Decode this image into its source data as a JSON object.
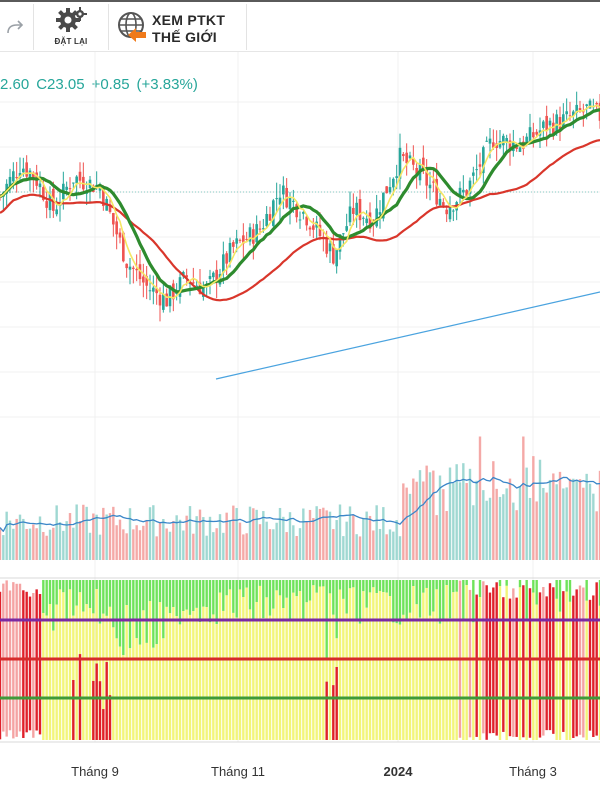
{
  "toolbar": {
    "reset_label": "ĐẶT LẠI",
    "ptkt_line1": "XEM PTKT",
    "ptkt_line2": "THẾ GIỚI"
  },
  "legend": {
    "low_partial": "2.60",
    "close": "C23.05",
    "change": "+0.85",
    "change_pct": "(+3.83%)"
  },
  "colors": {
    "up": "#26a69a",
    "down": "#ef5350",
    "ma_fast": "#f5e663",
    "ma_mid": "#2e8b2e",
    "ma_slow": "#d9362b",
    "trendline": "#4aa3df",
    "volume_ma": "#3a86c8",
    "ind_green": "#6fe35a",
    "ind_yellow": "#f2f57a",
    "ind_red": "#e0202a",
    "ind_pink": "#f4a3a3",
    "line_purple": "#7a2aa3",
    "line_red": "#d62b2b",
    "line_green": "#3f9a3a"
  },
  "chart_data": {
    "type": "candlestick",
    "title": "",
    "legend_text": "2.60 C23.05 +0.85 (+3.83%)",
    "x_tick_labels": [
      "Tháng 9",
      "Tháng 11",
      "2024",
      "Tháng 3"
    ],
    "y_axis_labels_visible": false,
    "panes": [
      {
        "name": "price",
        "series": [
          "candles",
          "MA fast (yellow)",
          "MA mid (green)",
          "MA slow (red)",
          "trendline"
        ]
      },
      {
        "name": "volume",
        "series": [
          "volume bars",
          "volume MA (blue)"
        ]
      },
      {
        "name": "oscillator",
        "series": [
          "histogram green/yellow/red"
        ],
        "horizontal_lines": [
          "purple",
          "red",
          "green"
        ]
      }
    ],
    "price_path_relative": [
      [
        0,
        0.7
      ],
      [
        6,
        0.8
      ],
      [
        10,
        0.77
      ],
      [
        16,
        0.66
      ],
      [
        22,
        0.76
      ],
      [
        30,
        0.73
      ],
      [
        38,
        0.5
      ],
      [
        44,
        0.42
      ],
      [
        50,
        0.38
      ],
      [
        56,
        0.45
      ],
      [
        62,
        0.41
      ],
      [
        70,
        0.54
      ],
      [
        78,
        0.6
      ],
      [
        84,
        0.72
      ],
      [
        92,
        0.64
      ],
      [
        100,
        0.52
      ],
      [
        106,
        0.66
      ],
      [
        112,
        0.63
      ],
      [
        120,
        0.82
      ],
      [
        126,
        0.77
      ],
      [
        134,
        0.67
      ],
      [
        140,
        0.72
      ],
      [
        148,
        0.88
      ],
      [
        156,
        0.86
      ],
      [
        164,
        0.92
      ],
      [
        170,
        0.94
      ],
      [
        176,
        0.97
      ],
      [
        180,
        0.95
      ]
    ]
  }
}
